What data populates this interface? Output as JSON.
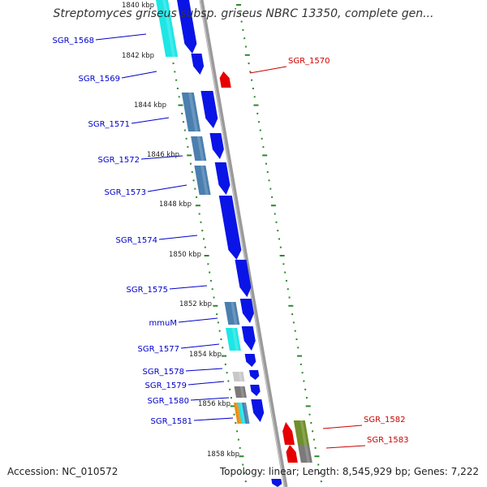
{
  "title": "Streptomyces griseus subsp. griseus NBRC 13350, complete gen...",
  "footer": {
    "accession": "Accession: NC_010572",
    "topology": "Topology: linear; Length: 8,545,929 bp; Genes: 7,222"
  },
  "colors": {
    "backbone": "#8c8c8c",
    "tick": "#2a8a2a",
    "label_forward": "#0000cc",
    "label_reverse": "#cc0000",
    "cds_blue": "#0a14e6",
    "cds_red": "#e60000",
    "cds_cyan": "#1ee6e6",
    "cds_steel": "#4a7fb0",
    "cds_gray": "#7a7a7a",
    "cds_lightgray": "#c8c8c8",
    "cds_orange": "#f08a10",
    "cds_olive": "#6f8f2a"
  },
  "kbp_labels": [
    "1840 kbp",
    "1842 kbp",
    "1844 kbp",
    "1846 kbp",
    "1848 kbp",
    "1850 kbp",
    "1852 kbp",
    "1854 kbp",
    "1856 kbp",
    "1858 kbp"
  ],
  "genes_forward": [
    {
      "label": "SGR_1568",
      "feature": "cyan"
    },
    {
      "label": "SGR_1569",
      "feature": "blue"
    },
    {
      "label": "SGR_1571",
      "feature": "steel"
    },
    {
      "label": "SGR_1572",
      "feature": "steel"
    },
    {
      "label": "SGR_1573",
      "feature": "steel"
    },
    {
      "label": "SGR_1574",
      "feature": "blue"
    },
    {
      "label": "SGR_1575",
      "feature": "blue"
    },
    {
      "label": "mmuM",
      "feature": "steel"
    },
    {
      "label": "SGR_1577",
      "feature": "cyan"
    },
    {
      "label": "SGR_1578",
      "feature": "lightgray"
    },
    {
      "label": "SGR_1579",
      "feature": "gray"
    },
    {
      "label": "SGR_1580",
      "feature": "blue"
    },
    {
      "label": "SGR_1581",
      "feature": "orange"
    }
  ],
  "genes_reverse": [
    {
      "label": "SGR_1570",
      "feature": "red"
    },
    {
      "label": "SGR_1582",
      "feature": "olive"
    },
    {
      "label": "SGR_1583",
      "feature": "gray"
    }
  ]
}
